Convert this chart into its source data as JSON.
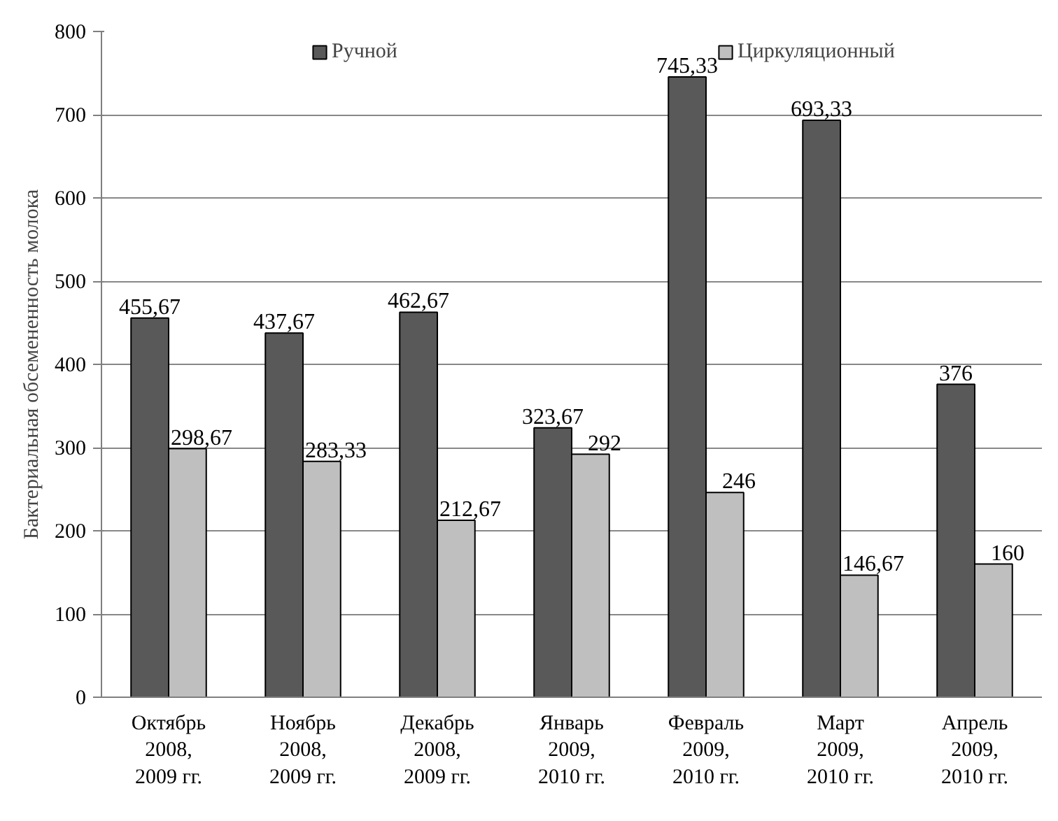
{
  "chart_data": {
    "type": "bar",
    "ylabel": "Бактериальная обсемененность молока",
    "categories": [
      "Октябрь\n2008,\n2009 гг.",
      "Ноябрь\n2008,\n2009 гг.",
      "Декабрь\n2008,\n2009 гг.",
      "Январь\n2009,\n2010 гг.",
      "Февраль\n2009,\n2010 гг.",
      "Март\n2009,\n2010 гг.",
      "Апрель\n2009,\n2010 гг."
    ],
    "series": [
      {
        "name": "Ручной",
        "color": "#595959",
        "values": [
          455.67,
          437.67,
          462.67,
          323.67,
          745.33,
          693.33,
          376
        ],
        "value_labels": [
          "455,67",
          "437,67",
          "462,67",
          "323,67",
          "745,33",
          "693,33",
          "376"
        ]
      },
      {
        "name": "Циркуляционный",
        "color": "#bfbfbf",
        "values": [
          298.67,
          283.33,
          212.67,
          292,
          246,
          146.67,
          160
        ],
        "value_labels": [
          "298,67",
          "283,33",
          "212,67",
          "292",
          "246",
          "146,67",
          "160"
        ]
      }
    ],
    "ylim": [
      0,
      800
    ],
    "yticks": [
      0,
      100,
      200,
      300,
      400,
      500,
      600,
      700,
      800
    ],
    "grid": "y",
    "legend": "top"
  }
}
